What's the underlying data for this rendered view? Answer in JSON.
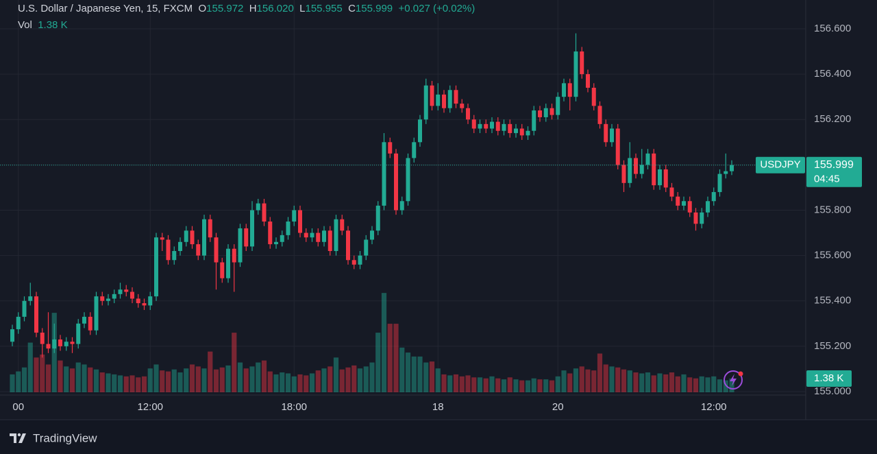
{
  "chart_data": {
    "type": "candlestick",
    "symbol_title": "U.S. Dollar / Japanese Yen, 15, FXCM",
    "ohlc_keys": [
      "O",
      "H",
      "L",
      "C"
    ],
    "ohlc_labels": [
      "155.972",
      "156.020",
      "155.955",
      "155.999"
    ],
    "change_label": "+0.027 (+0.02%)",
    "volume_title": "Vol",
    "volume_label": "1.38 K",
    "symbol": "USDJPY",
    "price_label": "155.999",
    "countdown": "04:45",
    "brand": "TradingView",
    "up_color": "#22ab94",
    "down_color": "#f23645",
    "grid": true,
    "ylim": [
      154.997,
      156.727
    ],
    "yticks": [
      {
        "value": 155,
        "label": "155.000"
      },
      {
        "value": 155.2,
        "label": "155.200"
      },
      {
        "value": 155.4,
        "label": "155.400"
      },
      {
        "value": 155.6,
        "label": "155.600"
      },
      {
        "value": 155.8,
        "label": "155.800"
      },
      {
        "value": 156,
        "label": "156.000"
      },
      {
        "value": 156.2,
        "label": "156.200"
      },
      {
        "value": 156.4,
        "label": "156.400"
      },
      {
        "value": 156.6,
        "label": "156.600"
      }
    ],
    "volume_ylim": [
      0,
      14500
    ],
    "categories": [
      null,
      "00",
      null,
      null,
      null,
      null,
      null,
      null,
      null,
      null,
      null,
      null,
      null,
      null,
      null,
      null,
      null,
      null,
      null,
      null,
      null,
      null,
      null,
      "12:00",
      null,
      null,
      null,
      null,
      null,
      null,
      null,
      null,
      null,
      null,
      null,
      null,
      null,
      null,
      null,
      null,
      null,
      null,
      null,
      null,
      null,
      null,
      null,
      "18:00",
      null,
      null,
      null,
      null,
      null,
      null,
      null,
      null,
      null,
      null,
      null,
      null,
      null,
      null,
      null,
      null,
      null,
      null,
      null,
      null,
      null,
      null,
      null,
      "18",
      null,
      null,
      null,
      null,
      null,
      null,
      null,
      null,
      null,
      null,
      null,
      null,
      null,
      null,
      null,
      null,
      null,
      null,
      null,
      "20",
      null,
      null,
      null,
      null,
      null,
      null,
      null,
      null,
      null,
      null,
      null,
      null,
      null,
      null,
      null,
      null,
      null,
      null,
      null,
      null,
      null,
      null,
      null,
      null,
      null,
      "12:00",
      null,
      null,
      null
    ],
    "open": [
      155.22,
      155.275,
      155.33,
      155.4,
      155.42,
      155.26,
      155.21,
      155.19,
      155.23,
      155.2,
      155.22,
      155.21,
      155.3,
      155.33,
      155.27,
      155.42,
      155.4,
      155.41,
      155.43,
      155.45,
      155.44,
      155.41,
      155.39,
      155.38,
      155.42,
      155.68,
      155.67,
      155.58,
      155.62,
      155.66,
      155.71,
      155.65,
      155.6,
      155.76,
      155.68,
      155.57,
      155.5,
      155.63,
      155.57,
      155.72,
      155.64,
      155.8,
      155.83,
      155.75,
      155.65,
      155.66,
      155.69,
      155.75,
      155.8,
      155.7,
      155.68,
      155.7,
      155.66,
      155.71,
      155.62,
      155.76,
      155.71,
      155.58,
      155.56,
      155.6,
      155.67,
      155.71,
      155.82,
      156.1,
      156.05,
      155.8,
      155.84,
      156.03,
      156.1,
      156.2,
      156.35,
      156.26,
      156.31,
      156.25,
      156.33,
      156.27,
      156.25,
      156.2,
      156.16,
      156.18,
      156.16,
      156.19,
      156.15,
      156.18,
      156.14,
      156.16,
      156.13,
      156.15,
      156.24,
      156.21,
      156.25,
      156.22,
      156.3,
      156.36,
      156.3,
      156.5,
      156.4,
      156.34,
      156.26,
      156.18,
      156.1,
      156.16,
      156.0,
      155.92,
      156.03,
      155.96,
      156.0,
      156.05,
      155.91,
      155.98,
      155.9,
      155.86,
      155.82,
      155.84,
      155.79,
      155.74,
      155.79,
      155.84,
      155.88,
      155.96,
      155.972
    ],
    "high": [
      155.295,
      155.35,
      155.42,
      155.48,
      155.44,
      155.28,
      155.35,
      155.3,
      155.25,
      155.24,
      155.24,
      155.32,
      155.35,
      155.35,
      155.44,
      155.44,
      155.43,
      155.45,
      155.48,
      155.47,
      155.46,
      155.43,
      155.41,
      155.44,
      155.7,
      155.7,
      155.69,
      155.64,
      155.68,
      155.73,
      155.73,
      155.67,
      155.78,
      155.78,
      155.7,
      155.59,
      155.65,
      155.65,
      155.74,
      155.74,
      155.84,
      155.85,
      155.85,
      155.77,
      155.68,
      155.71,
      155.77,
      155.82,
      155.82,
      155.72,
      155.72,
      155.72,
      155.73,
      155.73,
      155.78,
      155.78,
      155.73,
      155.6,
      155.62,
      155.69,
      155.73,
      155.84,
      156.14,
      156.12,
      156.07,
      155.86,
      156.05,
      156.12,
      156.22,
      156.38,
      156.37,
      156.36,
      156.33,
      156.35,
      156.35,
      156.29,
      156.27,
      156.22,
      156.2,
      156.2,
      156.21,
      156.21,
      156.2,
      156.2,
      156.18,
      156.18,
      156.17,
      156.26,
      156.26,
      156.27,
      156.27,
      156.32,
      156.38,
      156.38,
      156.58,
      156.52,
      156.42,
      156.36,
      156.28,
      156.2,
      156.18,
      156.18,
      156.02,
      156.1,
      156.05,
      156.07,
      156.07,
      156.07,
      156.0,
      156.0,
      155.92,
      155.88,
      155.86,
      155.86,
      155.81,
      155.81,
      155.86,
      155.9,
      155.98,
      156.05,
      156.02
    ],
    "low": [
      155.2,
      155.255,
      155.31,
      155.38,
      155.24,
      155.15,
      155.17,
      155.17,
      155.18,
      155.18,
      155.17,
      155.19,
      155.28,
      155.25,
      155.25,
      155.38,
      155.38,
      155.39,
      155.41,
      155.42,
      155.39,
      155.37,
      155.36,
      155.36,
      155.4,
      155.62,
      155.56,
      155.56,
      155.6,
      155.64,
      155.63,
      155.58,
      155.58,
      155.66,
      155.45,
      155.48,
      155.48,
      155.44,
      155.55,
      155.62,
      155.62,
      155.78,
      155.73,
      155.63,
      155.63,
      155.64,
      155.67,
      155.73,
      155.68,
      155.66,
      155.66,
      155.64,
      155.64,
      155.6,
      155.6,
      155.69,
      155.56,
      155.54,
      155.54,
      155.58,
      155.65,
      155.69,
      155.8,
      156.03,
      155.78,
      155.78,
      155.82,
      156.01,
      156.08,
      156.18,
      156.24,
      156.24,
      156.23,
      156.23,
      156.25,
      156.23,
      156.18,
      156.14,
      156.14,
      156.14,
      156.14,
      156.13,
      156.13,
      156.12,
      156.12,
      156.11,
      156.11,
      156.13,
      156.19,
      156.19,
      156.2,
      156.2,
      156.28,
      156.24,
      156.28,
      156.38,
      156.32,
      156.24,
      156.16,
      156.08,
      156.08,
      155.98,
      155.88,
      155.9,
      155.94,
      155.94,
      155.98,
      155.89,
      155.89,
      155.88,
      155.84,
      155.8,
      155.8,
      155.77,
      155.71,
      155.72,
      155.77,
      155.82,
      155.86,
      155.94,
      155.955
    ],
    "close": [
      155.275,
      155.33,
      155.4,
      155.42,
      155.26,
      155.21,
      155.19,
      155.23,
      155.2,
      155.22,
      155.21,
      155.3,
      155.33,
      155.27,
      155.42,
      155.4,
      155.41,
      155.43,
      155.45,
      155.44,
      155.41,
      155.39,
      155.38,
      155.42,
      155.68,
      155.67,
      155.58,
      155.62,
      155.66,
      155.71,
      155.65,
      155.6,
      155.76,
      155.68,
      155.57,
      155.5,
      155.63,
      155.57,
      155.72,
      155.64,
      155.8,
      155.83,
      155.75,
      155.65,
      155.66,
      155.69,
      155.75,
      155.8,
      155.7,
      155.68,
      155.7,
      155.66,
      155.71,
      155.62,
      155.76,
      155.71,
      155.58,
      155.56,
      155.6,
      155.67,
      155.71,
      155.82,
      156.1,
      156.05,
      155.8,
      155.84,
      156.03,
      156.1,
      156.2,
      156.35,
      156.26,
      156.31,
      156.25,
      156.33,
      156.27,
      156.25,
      156.2,
      156.16,
      156.18,
      156.16,
      156.19,
      156.15,
      156.18,
      156.14,
      156.16,
      156.13,
      156.15,
      156.24,
      156.21,
      156.25,
      156.22,
      156.3,
      156.36,
      156.3,
      156.5,
      156.4,
      156.34,
      156.26,
      156.18,
      156.1,
      156.16,
      156.0,
      155.92,
      156.03,
      155.96,
      156.0,
      156.05,
      155.91,
      155.98,
      155.9,
      155.86,
      155.82,
      155.84,
      155.79,
      155.74,
      155.79,
      155.84,
      155.88,
      155.96,
      155.972,
      155.999
    ],
    "volume": [
      1800,
      2100,
      2500,
      5000,
      3500,
      3800,
      2800,
      8000,
      3200,
      2600,
      2400,
      3000,
      2800,
      2500,
      2300,
      2000,
      1900,
      1800,
      1700,
      1600,
      1700,
      1500,
      1600,
      2400,
      2800,
      2200,
      2100,
      2300,
      2000,
      2400,
      2800,
      2600,
      2400,
      4100,
      2300,
      2500,
      2700,
      6000,
      3000,
      2400,
      2600,
      3000,
      3200,
      2100,
      1800,
      2000,
      1900,
      1600,
      1800,
      1700,
      1900,
      2200,
      2400,
      2600,
      3500,
      2300,
      2500,
      2700,
      2400,
      2600,
      3000,
      6000,
      10000,
      6900,
      6900,
      4500,
      4000,
      3600,
      3600,
      3000,
      3100,
      2400,
      1800,
      1700,
      1800,
      1600,
      1700,
      1500,
      1500,
      1400,
      1600,
      1400,
      1300,
      1500,
      1300,
      1200,
      1200,
      1400,
      1300,
      1300,
      1200,
      1600,
      2200,
      1900,
      2400,
      2600,
      2300,
      2200,
      3900,
      2800,
      2600,
      2500,
      2300,
      2200,
      2000,
      1900,
      2000,
      1700,
      1900,
      1800,
      2000,
      1600,
      1800,
      1500,
      1400,
      1600,
      1500,
      1600,
      1300,
      1200,
      1380
    ]
  }
}
